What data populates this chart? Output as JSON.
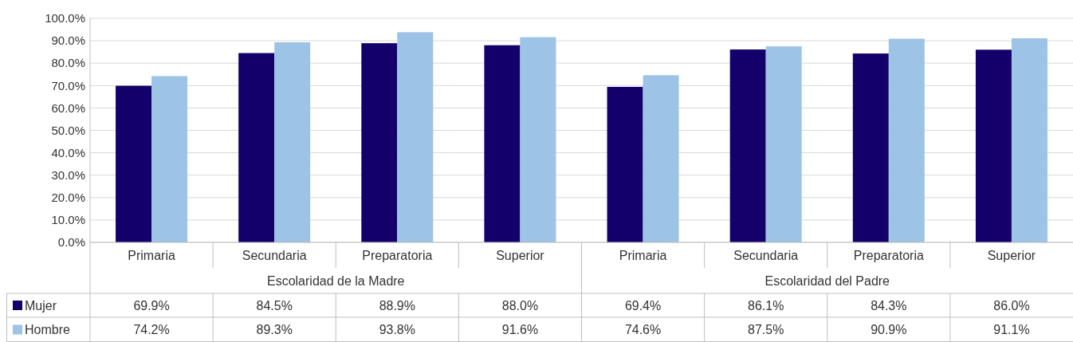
{
  "chart_data": {
    "type": "bar",
    "categories": [
      "Primaria",
      "Secundaria",
      "Preparatoria",
      "Superior",
      "Primaria",
      "Secundaria",
      "Preparatoria",
      "Superior"
    ],
    "annotations": [
      "Escolaridad de la Madre",
      "Escolaridad del Padre"
    ],
    "series": [
      {
        "name": "Mujer",
        "color": "#14006b",
        "values": [
          69.9,
          84.5,
          88.9,
          88.0,
          69.4,
          86.1,
          84.3,
          86.0
        ],
        "value_labels": [
          "69.9%",
          "84.5%",
          "88.9%",
          "88.0%",
          "69.4%",
          "86.1%",
          "84.3%",
          "86.0%"
        ]
      },
      {
        "name": "Hombre",
        "color": "#9dc3e6",
        "values": [
          74.2,
          89.3,
          93.8,
          91.6,
          74.6,
          87.5,
          90.9,
          91.1
        ],
        "value_labels": [
          "74.2%",
          "89.3%",
          "93.8%",
          "91.6%",
          "74.6%",
          "87.5%",
          "90.9%",
          "91.1%"
        ]
      }
    ],
    "ylim": [
      0,
      100
    ],
    "yticks": [
      {
        "value": 0,
        "label": "0.0%"
      },
      {
        "value": 10,
        "label": "10.0%"
      },
      {
        "value": 20,
        "label": "20.0%"
      },
      {
        "value": 30,
        "label": "30.0%"
      },
      {
        "value": 40,
        "label": "40.0%"
      },
      {
        "value": 50,
        "label": "50.0%"
      },
      {
        "value": 60,
        "label": "60.0%"
      },
      {
        "value": 70,
        "label": "70.0%"
      },
      {
        "value": 80,
        "label": "80.0%"
      },
      {
        "value": 90,
        "label": "90.0%"
      },
      {
        "value": 100,
        "label": "100.0%"
      }
    ],
    "grid": "y",
    "legend": "bottom"
  }
}
